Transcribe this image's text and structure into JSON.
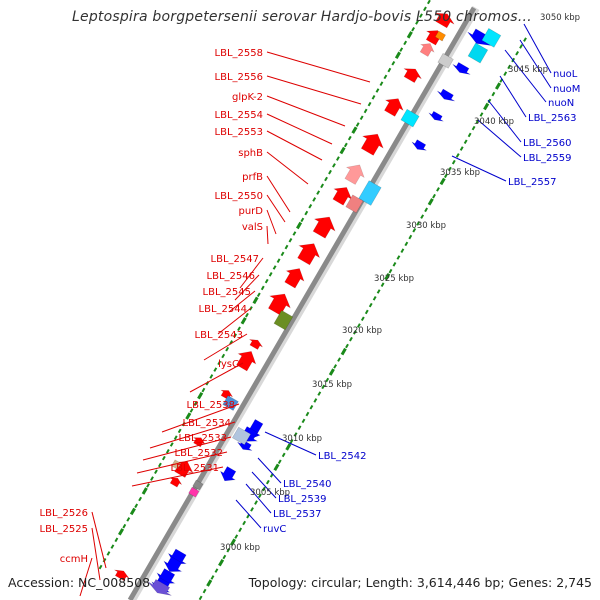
{
  "title": "Leptospira borgpetersenii serovar Hardjo-bovis L550 chromoso...",
  "accession": "Accession: NC_008508",
  "topology": "Topology: circular; Length: 3,614,446 bp; Genes: 2,745",
  "ticks": [
    {
      "label": "3000 kbp"
    },
    {
      "label": "3005 kbp"
    },
    {
      "label": "3010 kbp"
    },
    {
      "label": "3015 kbp"
    },
    {
      "label": "3020 kbp"
    },
    {
      "label": "3025 kbp"
    },
    {
      "label": "3030 kbp"
    },
    {
      "label": "3035 kbp"
    },
    {
      "label": "3040 kbp"
    },
    {
      "label": "3045 kbp"
    },
    {
      "label": "3050 kbp"
    }
  ],
  "forward_labels": [
    "LBL_2558",
    "LBL_2556",
    "glpK-2",
    "LBL_2554",
    "LBL_2553",
    "sphB",
    "prfB",
    "LBL_2550",
    "purD",
    "valS",
    "LBL_2547",
    "LBL_2546",
    "LBL_2545",
    "LBL_2544",
    "LBL_2543",
    "lysC",
    "LBL_2538",
    "LBL_2534",
    "LBL_2533",
    "LBL_2532",
    "LBL_2531",
    "LBL_2526",
    "LBL_2525",
    "ccmH"
  ],
  "reverse_labels": [
    "nuoL",
    "nuoM",
    "nuoN",
    "LBL_2563",
    "LBL_2560",
    "LBL_2559",
    "LBL_2557",
    "LBL_2542",
    "LBL_2540",
    "LBL_2539",
    "LBL_2537",
    "ruvC"
  ],
  "colors": {
    "forward_gene": "#ff0000",
    "reverse_gene": "#0000ff",
    "forward_label": "#dd0000",
    "reverse_label": "#0000cc",
    "backbone": "#888888",
    "gc_tick": "#1a8a1a"
  },
  "forward_genes": [
    {
      "color": "#ff0000"
    },
    {
      "color": "#ff0000"
    },
    {
      "color": "#ff7f7f"
    },
    {
      "color": "#ff0000"
    },
    {
      "color": "#ff0000"
    },
    {
      "color": "#ff0000"
    },
    {
      "color": "#ff9999"
    },
    {
      "color": "#ff0000"
    },
    {
      "color": "#ff0000"
    },
    {
      "color": "#ff0000"
    },
    {
      "color": "#ff0000"
    },
    {
      "color": "#ff0000"
    },
    {
      "color": "#ff0000"
    },
    {
      "color": "#ff0000"
    },
    {
      "color": "#ff0000"
    },
    {
      "color": "#ff0000"
    },
    {
      "color": "#ff0000"
    },
    {
      "color": "#ff0000"
    },
    {
      "color": "#ff0000"
    }
  ],
  "reverse_genes": [
    {
      "color": "#0000ff"
    },
    {
      "color": "#0000ff"
    },
    {
      "color": "#0000ff"
    },
    {
      "color": "#0000ff"
    },
    {
      "color": "#0000ff"
    },
    {
      "color": "#0000ff"
    },
    {
      "color": "#0000ff"
    },
    {
      "color": "#0000ff"
    },
    {
      "color": "#0000ff"
    },
    {
      "color": "#0000ff"
    },
    {
      "color": "#0000ff"
    },
    {
      "color": "#0000ff"
    },
    {
      "color": "#0000ff"
    },
    {
      "color": "#6a4fd6"
    }
  ],
  "feature_blocks": [
    {
      "color": "#00d8f0"
    },
    {
      "color": "#00e5ff"
    },
    {
      "color": "#33ccff"
    },
    {
      "color": "#f08080"
    },
    {
      "color": "#6b8e23"
    },
    {
      "color": "#cccccc"
    },
    {
      "color": "#4a90d9"
    },
    {
      "color": "#b0c4de"
    },
    {
      "color": "#ff8c00"
    },
    {
      "color": "#d2b48c"
    },
    {
      "color": "#ff33aa"
    },
    {
      "color": "#888888"
    },
    {
      "color": "#00e5ff"
    }
  ]
}
